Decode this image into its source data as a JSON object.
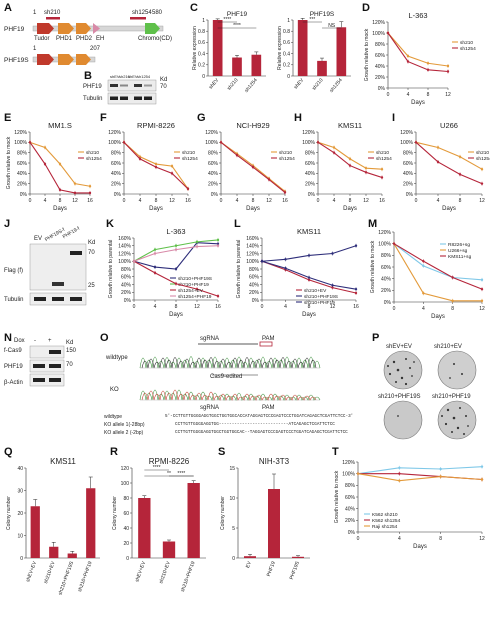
{
  "panels": {
    "A": {
      "letter": "A",
      "phf19": "PHF19",
      "phf19s": "PHF19S",
      "n1": "1",
      "n580": "580",
      "n207": "207",
      "sh210": "sh210",
      "sh1254": "sh1254",
      "tudor": "Tudor",
      "phd1": "PHD1",
      "phd2": "PHD2",
      "eh": "EH",
      "chromo": "Chromo(CD)"
    },
    "B": {
      "letter": "B",
      "row1": "PHF19",
      "row2": "Tubulin",
      "kd": "Kd",
      "k70": "70",
      "lanes": [
        "shEV",
        "sh210",
        "shEV",
        "sh1254"
      ]
    },
    "C": {
      "letter": "C"
    },
    "D": {
      "letter": "D"
    },
    "E": {
      "letter": "E"
    },
    "F": {
      "letter": "F"
    },
    "G": {
      "letter": "G"
    },
    "H": {
      "letter": "H"
    },
    "I": {
      "letter": "I"
    },
    "J": {
      "letter": "J",
      "lanes": [
        "EV",
        "PHF19S-f",
        "PHF19-f"
      ],
      "row1": "Flag (f)",
      "row2": "Tubulin",
      "kd": "Kd",
      "k70": "70",
      "k25": "25"
    },
    "K": {
      "letter": "K"
    },
    "L": {
      "letter": "L"
    },
    "M": {
      "letter": "M"
    },
    "N": {
      "letter": "N",
      "dox": "Dox",
      "minus": "-",
      "plus": "+",
      "kd": "Kd",
      "k150": "150",
      "k70": "70",
      "row1": "f-Cas9",
      "row2": "PHF19",
      "row3": "β-Actin"
    },
    "O": {
      "letter": "O",
      "wildtype": "wildtype",
      "ko": "KO",
      "sgrna": "sgRNA",
      "pam": "PAM",
      "edited": "Cas9-edited",
      "sgrna2": "sgRNA",
      "pam2": "PAM",
      "seq_wt_label": "wildtype",
      "seq_wt": "5'-CCTTGTTGGGGAGGTGGCTGGTGGCACCATAGGAGTCCCGAGTCCCTGGATCAGAGCTCGATTCTCC-3'",
      "seq_k1_label": "KO allele 1(-28bp)",
      "seq_k1": "CCTTGTTGGGGAGGTGG---------------------------ATCAGAGCTCGATTCTCC",
      "seq_k2_label": "KO allele 2 (-2bp)",
      "seq_k2": "CCTTGTTGGGGAGGTGGCTGGTGGCAC--TAGGAGTCCCGAGTCCCTGGATCAGAGCTCGATTCTCC"
    },
    "P": {
      "letter": "P",
      "w1": "shEV+EV",
      "w2": "sh210+EV",
      "w3": "sh210+PHF19S",
      "w4": "sh210+PHF19"
    },
    "Q": {
      "letter": "Q"
    },
    "R": {
      "letter": "R"
    },
    "S": {
      "letter": "S"
    },
    "T": {
      "letter": "T"
    }
  },
  "colors": {
    "orange": "#e39a3a",
    "red": "#b5253a",
    "green": "#5fc04a",
    "navy": "#2e2e7a",
    "lightblue": "#7fc8e8",
    "pink": "#d88aa8"
  },
  "chart_data": [
    {
      "id": "C1",
      "type": "bar",
      "title": "PHF19",
      "ylabel": "Relative expression",
      "categories": [
        "shEV",
        "sh210",
        "sh1254"
      ],
      "values": [
        1.0,
        0.33,
        0.38
      ],
      "errors": [
        0.02,
        0.04,
        0.05
      ],
      "ylim": [
        0,
        1
      ],
      "yticks": [
        "0",
        "0.2",
        "0.4",
        "0.6",
        "0.8",
        "1"
      ],
      "sig": [
        "****",
        "****"
      ]
    },
    {
      "id": "C2",
      "type": "bar",
      "title": "PHF19S",
      "ylabel": "Relative expression",
      "categories": [
        "shEV",
        "sh210",
        "sh1254"
      ],
      "values": [
        1.0,
        0.27,
        0.87
      ],
      "errors": [
        0.03,
        0.05,
        0.1
      ],
      "ylim": [
        0,
        1
      ],
      "yticks": [
        "0",
        "0.2",
        "0.4",
        "0.6",
        "0.8",
        "1"
      ],
      "sig": [
        "***",
        "NS"
      ]
    },
    {
      "id": "D",
      "type": "line",
      "title": "L-363",
      "xlabel": "Days",
      "ylabel": "Growth relative to mock",
      "x": [
        0,
        4,
        8,
        12
      ],
      "xticks": [
        "0",
        "4",
        "8",
        "12"
      ],
      "ylim": [
        0,
        120
      ],
      "yticks": [
        "0%",
        "20%",
        "40%",
        "60%",
        "80%",
        "100%",
        "120%"
      ],
      "series": [
        {
          "name": "sh210",
          "color": "orange",
          "values": [
            100,
            58,
            45,
            40
          ]
        },
        {
          "name": "sh1254",
          "color": "red",
          "values": [
            100,
            48,
            33,
            30
          ]
        }
      ]
    },
    {
      "id": "E",
      "type": "line",
      "title": "MM1.S",
      "xlabel": "Days",
      "ylabel": "Growth relative to mock",
      "x": [
        0,
        4,
        8,
        12,
        16
      ],
      "xticks": [
        "0",
        "4",
        "8",
        "12",
        "16"
      ],
      "ylim": [
        0,
        120
      ],
      "yticks": [
        "0%",
        "20%",
        "40%",
        "60%",
        "80%",
        "100%",
        "120%"
      ],
      "series": [
        {
          "name": "sh210",
          "color": "orange",
          "values": [
            100,
            90,
            58,
            20,
            15
          ]
        },
        {
          "name": "sh1254",
          "color": "red",
          "values": [
            100,
            58,
            8,
            2,
            2
          ]
        }
      ]
    },
    {
      "id": "F",
      "type": "line",
      "title": "RPMI-8226",
      "xlabel": "Days",
      "ylabel": "",
      "x": [
        0,
        4,
        8,
        12,
        16
      ],
      "xticks": [
        "0",
        "4",
        "8",
        "12",
        "16"
      ],
      "ylim": [
        0,
        120
      ],
      "yticks": [
        "0%",
        "20%",
        "40%",
        "60%",
        "80%",
        "100%",
        "120%"
      ],
      "series": [
        {
          "name": "sh210",
          "color": "orange",
          "values": [
            100,
            72,
            58,
            54,
            10
          ]
        },
        {
          "name": "sh1254",
          "color": "red",
          "values": [
            100,
            68,
            52,
            40,
            10
          ]
        }
      ]
    },
    {
      "id": "G",
      "type": "line",
      "title": "NCI-H929",
      "xlabel": "Days",
      "ylabel": "",
      "x": [
        0,
        4,
        8,
        12,
        16
      ],
      "xticks": [
        "0",
        "4",
        "8",
        "12",
        "16"
      ],
      "ylim": [
        0,
        120
      ],
      "yticks": [
        "0%",
        "20%",
        "40%",
        "60%",
        "80%",
        "100%",
        "120%"
      ],
      "series": [
        {
          "name": "sh210",
          "color": "orange",
          "values": [
            100,
            78,
            55,
            30,
            5
          ]
        },
        {
          "name": "sh1254",
          "color": "red",
          "values": [
            100,
            75,
            52,
            28,
            3
          ]
        }
      ]
    },
    {
      "id": "H",
      "type": "line",
      "title": "KMS11",
      "xlabel": "Days",
      "ylabel": "",
      "x": [
        0,
        4,
        8,
        12,
        16
      ],
      "xticks": [
        "0",
        "4",
        "8",
        "12",
        "16"
      ],
      "ylim": [
        0,
        120
      ],
      "yticks": [
        "0%",
        "20%",
        "40%",
        "60%",
        "80%",
        "100%",
        "120%"
      ],
      "series": [
        {
          "name": "sh210",
          "color": "orange",
          "values": [
            100,
            90,
            68,
            50,
            48
          ]
        },
        {
          "name": "sh1254",
          "color": "red",
          "values": [
            100,
            80,
            55,
            42,
            32
          ]
        }
      ]
    },
    {
      "id": "I",
      "type": "line",
      "title": "U266",
      "xlabel": "Days",
      "ylabel": "",
      "x": [
        0,
        4,
        8,
        12
      ],
      "xticks": [
        "0",
        "4",
        "8",
        "12"
      ],
      "ylim": [
        0,
        120
      ],
      "yticks": [
        "0%",
        "20%",
        "40%",
        "60%",
        "80%",
        "100%",
        "120%"
      ],
      "series": [
        {
          "name": "sh210",
          "color": "orange",
          "values": [
            100,
            90,
            72,
            48
          ]
        },
        {
          "name": "sh1254",
          "color": "red",
          "values": [
            100,
            62,
            38,
            20
          ]
        }
      ]
    },
    {
      "id": "K",
      "type": "line",
      "title": "L-363",
      "xlabel": "Days",
      "ylabel": "Growth relative to parental",
      "x": [
        0,
        4,
        8,
        12,
        16
      ],
      "xticks": [
        "0",
        "4",
        "8",
        "12",
        "16"
      ],
      "ylim": [
        0,
        160
      ],
      "yticks": [
        "0%",
        "20%",
        "40%",
        "60%",
        "80%",
        "100%",
        "120%",
        "140%",
        "160%"
      ],
      "series": [
        {
          "name": "sh210+PHF19S",
          "color": "navy",
          "values": [
            100,
            85,
            80,
            148,
            145
          ]
        },
        {
          "name": "sh210+PHF19",
          "color": "green",
          "values": [
            100,
            130,
            140,
            150,
            155
          ]
        },
        {
          "name": "sh1254+EV",
          "color": "red",
          "values": [
            100,
            70,
            42,
            28,
            10
          ]
        },
        {
          "name": "sh1254+PHF19",
          "color": "pink",
          "values": [
            100,
            120,
            130,
            138,
            140
          ]
        }
      ]
    },
    {
      "id": "L",
      "type": "line",
      "title": "KMS11",
      "xlabel": "Days",
      "ylabel": "Growth relative to parental",
      "x": [
        0,
        4,
        8,
        12,
        16
      ],
      "xticks": [
        "0",
        "4",
        "8",
        "12",
        "16"
      ],
      "ylim": [
        0,
        160
      ],
      "yticks": [
        "0%",
        "20%",
        "40%",
        "60%",
        "80%",
        "100%",
        "120%",
        "140%",
        "160%"
      ],
      "series": [
        {
          "name": "sh210+EV",
          "color": "red",
          "values": [
            100,
            78,
            52,
            32,
            18
          ]
        },
        {
          "name": "sh210+PHF19S",
          "color": "navy",
          "values": [
            100,
            82,
            58,
            38,
            28
          ]
        },
        {
          "name": "sh210+PHF19",
          "color": "navy",
          "values": [
            100,
            105,
            115,
            120,
            140
          ]
        }
      ]
    },
    {
      "id": "M",
      "type": "line",
      "title": "",
      "xlabel": "Days",
      "ylabel": "Growth relative to mock",
      "x": [
        0,
        4,
        8,
        12
      ],
      "xticks": [
        "0",
        "4",
        "8",
        "12"
      ],
      "ylim": [
        0,
        120
      ],
      "yticks": [
        "0%",
        "20%",
        "40%",
        "60%",
        "80%",
        "100%",
        "120%"
      ],
      "series": [
        {
          "name": "R8226+sg",
          "color": "lightblue",
          "values": [
            100,
            62,
            42,
            38
          ]
        },
        {
          "name": "U266+sg",
          "color": "orange",
          "values": [
            100,
            15,
            2,
            2
          ]
        },
        {
          "name": "KMS11+sg",
          "color": "red",
          "values": [
            100,
            70,
            42,
            22
          ]
        }
      ]
    },
    {
      "id": "Q",
      "type": "bar",
      "title": "KMS11",
      "ylabel": "Colony number",
      "categories": [
        "shEV+EV",
        "sh210+EV",
        "sh210+PHF19S",
        "sh210+PHF19"
      ],
      "values": [
        23,
        5,
        2,
        31
      ],
      "errors": [
        3,
        2,
        1,
        5
      ],
      "ylim": [
        0,
        40
      ],
      "yticks": [
        "0",
        "10",
        "20",
        "30",
        "40"
      ]
    },
    {
      "id": "R",
      "type": "bar",
      "title": "RPMI-8226",
      "ylabel": "Colony number",
      "categories": [
        "shEV+EV",
        "sh210+EV",
        "sh210+PHF19"
      ],
      "values": [
        80,
        22,
        100
      ],
      "errors": [
        3,
        2,
        3
      ],
      "ylim": [
        0,
        120
      ],
      "yticks": [
        "0",
        "20",
        "40",
        "60",
        "80",
        "100",
        "120"
      ],
      "sig": [
        "****",
        "**",
        "****"
      ]
    },
    {
      "id": "S",
      "type": "bar",
      "title": "NIH-3T3",
      "ylabel": "Colony number",
      "categories": [
        "EV",
        "PHF19",
        "PHF19S"
      ],
      "values": [
        0.3,
        11.5,
        0.2
      ],
      "errors": [
        0.3,
        2.5,
        0.2
      ],
      "ylim": [
        0,
        15
      ],
      "yticks": [
        "0",
        "5",
        "10",
        "15"
      ]
    },
    {
      "id": "T",
      "type": "line",
      "title": "",
      "xlabel": "Days",
      "ylabel": "Growth relative to mock",
      "x": [
        0,
        4,
        8,
        12
      ],
      "xticks": [
        "0",
        "4",
        "8",
        "12"
      ],
      "ylim": [
        0,
        120
      ],
      "yticks": [
        "0%",
        "20%",
        "40%",
        "60%",
        "80%",
        "100%",
        "120%"
      ],
      "series": [
        {
          "name": "K562 sh210",
          "color": "lightblue",
          "values": [
            100,
            110,
            108,
            112
          ]
        },
        {
          "name": "K562 sh1254",
          "color": "red",
          "values": [
            100,
            100,
            95,
            90
          ]
        },
        {
          "name": "Raji sh1254",
          "color": "orange",
          "values": [
            100,
            88,
            95,
            90
          ]
        }
      ]
    }
  ]
}
